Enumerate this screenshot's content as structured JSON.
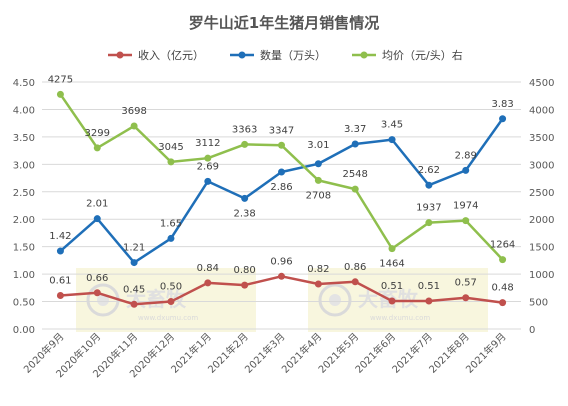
{
  "chart_data": {
    "type": "line",
    "title": "罗牛山近1年生猪月销售情况",
    "categories": [
      "2020年9月",
      "2020年10月",
      "2020年11月",
      "2020年12月",
      "2021年1月",
      "2021年2月",
      "2021年3月",
      "2021年4月",
      "2021年5月",
      "2021年6月",
      "2021年7月",
      "2021年8月",
      "2021年9月"
    ],
    "series": [
      {
        "name": "收入（亿元）",
        "axis": "left",
        "color": "#c0504d",
        "values": [
          0.61,
          0.66,
          0.45,
          0.5,
          0.84,
          0.8,
          0.96,
          0.82,
          0.86,
          0.51,
          0.51,
          0.57,
          0.48
        ],
        "labels": [
          "0.61",
          "0.66",
          "0.45",
          "0.50",
          "0.84",
          "0.80",
          "0.96",
          "0.82",
          "0.86",
          "0.51",
          "0.51",
          "0.57",
          "0.48"
        ]
      },
      {
        "name": "数量（万头）",
        "axis": "left",
        "color": "#1f6fb8",
        "values": [
          1.42,
          2.01,
          1.21,
          1.65,
          2.69,
          2.38,
          2.86,
          3.01,
          3.37,
          3.45,
          2.62,
          2.89,
          3.83
        ],
        "labels": [
          "1.42",
          "2.01",
          "1.21",
          "1.65",
          "2.69",
          "2.38",
          "2.86",
          "3.01",
          "3.37",
          "3.45",
          "2.62",
          "2.89",
          "3.83"
        ]
      },
      {
        "name": "均价（元/头）右",
        "axis": "right",
        "color": "#8fbf4d",
        "values": [
          4275,
          3299,
          3698,
          3045,
          3112,
          3363,
          3347,
          2708,
          2548,
          1464,
          1937,
          1974,
          1264
        ],
        "labels": [
          "4275",
          "3299",
          "3698",
          "3045",
          "3112",
          "3363",
          "3347",
          "2708",
          "2548",
          "1464",
          "1937",
          "1974",
          "1264"
        ]
      }
    ],
    "y_left": {
      "min": 0,
      "max": 4.5,
      "ticks": [
        "0.00",
        "0.50",
        "1.00",
        "1.50",
        "2.00",
        "2.50",
        "3.00",
        "3.50",
        "4.00",
        "4.50"
      ]
    },
    "y_right": {
      "min": 0,
      "max": 4500,
      "ticks": [
        "0",
        "500",
        "1000",
        "1500",
        "2000",
        "2500",
        "3000",
        "3500",
        "4000",
        "4500"
      ]
    },
    "grid": true,
    "legend": "top-center",
    "watermark": {
      "brand": "大畜牧",
      "url": "www.dxumu.com"
    }
  }
}
